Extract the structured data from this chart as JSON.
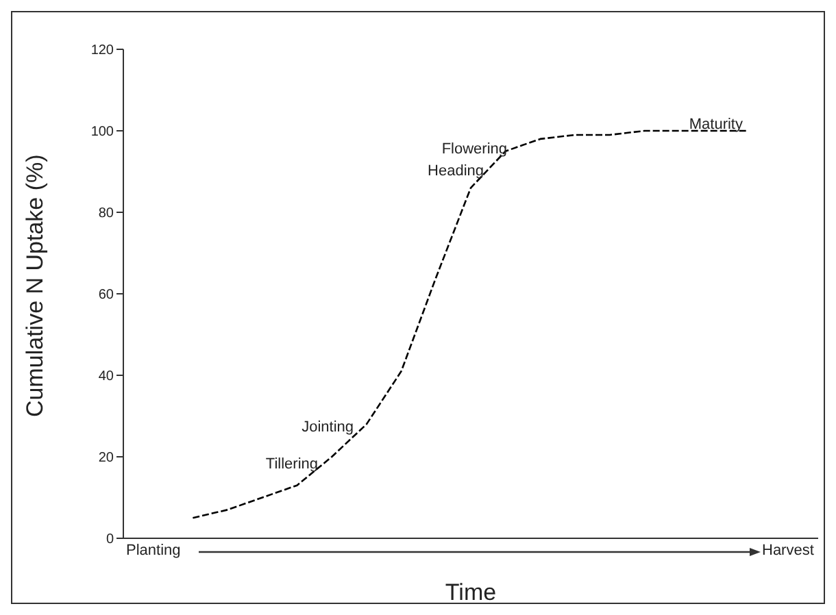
{
  "chart_data": {
    "type": "line",
    "xlabel": "Time",
    "ylabel": "Cumulative N Uptake (%)",
    "categories": [
      null,
      null,
      null,
      null,
      null,
      null,
      null,
      null,
      null,
      null,
      null,
      null,
      null,
      null,
      null,
      null,
      null,
      null,
      null,
      null,
      null
    ],
    "series": [
      {
        "color": "#000000",
        "values": [
          null,
          null,
          5,
          7,
          10,
          13,
          20,
          28,
          41,
          64,
          86,
          95,
          98,
          99,
          99,
          100,
          100,
          100,
          100,
          null,
          null
        ]
      }
    ],
    "ylim": [
      0,
      120
    ],
    "yticks": [
      0,
      20,
      40,
      60,
      80,
      100,
      120
    ],
    "line_style": "dashed",
    "annotations": [
      "Planting",
      "Harvest",
      "Tillering",
      "Jointing",
      "Heading",
      "Flowering",
      "Maturity"
    ]
  }
}
